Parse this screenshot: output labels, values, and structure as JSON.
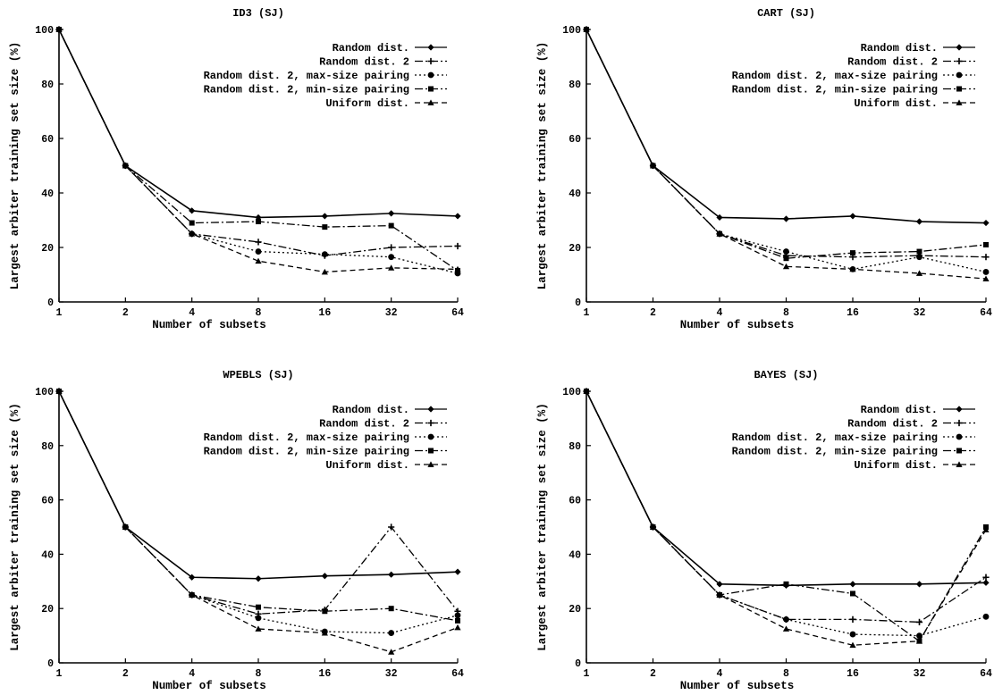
{
  "chart_data": [
    {
      "type": "line",
      "title": "ID3 (SJ)",
      "xlabel": "Number of subsets",
      "ylabel": "Largest arbiter training set size (%)",
      "x": [
        1,
        2,
        4,
        8,
        16,
        32,
        64
      ],
      "x_scale": "log2",
      "ylim": [
        0,
        100
      ],
      "yticks": [
        0,
        20,
        40,
        60,
        80,
        100
      ],
      "legend_position": "top-right",
      "series": [
        {
          "name": "Random dist.",
          "marker": "diamond",
          "dash": "solid",
          "values": [
            100,
            50,
            33.5,
            31,
            31.5,
            32.5,
            31.5
          ]
        },
        {
          "name": "Random dist. 2",
          "marker": "plus",
          "dash": "dash-dot",
          "values": [
            100,
            50,
            25,
            22,
            17,
            20,
            20.5
          ]
        },
        {
          "name": "Random dist. 2, max-size pairing",
          "marker": "circle",
          "dash": "dotted",
          "values": [
            100,
            50,
            25,
            18.5,
            17.5,
            16.5,
            10.5
          ]
        },
        {
          "name": "Random dist. 2, min-size pairing",
          "marker": "square",
          "dash": "dash-dot",
          "values": [
            100,
            50,
            29,
            29.5,
            27.5,
            28,
            11.5
          ]
        },
        {
          "name": "Uniform dist.",
          "marker": "triangle",
          "dash": "dashed",
          "values": [
            100,
            50,
            25,
            15,
            11,
            12.5,
            12
          ]
        }
      ]
    },
    {
      "type": "line",
      "title": "CART (SJ)",
      "xlabel": "Number of subsets",
      "ylabel": "Largest arbiter training set size (%)",
      "x": [
        1,
        2,
        4,
        8,
        16,
        32,
        64
      ],
      "x_scale": "log2",
      "ylim": [
        0,
        100
      ],
      "yticks": [
        0,
        20,
        40,
        60,
        80,
        100
      ],
      "legend_position": "top-right",
      "series": [
        {
          "name": "Random dist.",
          "marker": "diamond",
          "dash": "solid",
          "values": [
            100,
            50,
            31,
            30.5,
            31.5,
            29.5,
            29
          ]
        },
        {
          "name": "Random dist. 2",
          "marker": "plus",
          "dash": "dash-dot",
          "values": [
            100,
            50,
            25,
            17,
            16.5,
            17,
            16.5
          ]
        },
        {
          "name": "Random dist. 2, max-size pairing",
          "marker": "circle",
          "dash": "dotted",
          "values": [
            100,
            50,
            25,
            18.5,
            12,
            16.5,
            11
          ]
        },
        {
          "name": "Random dist. 2, min-size pairing",
          "marker": "square",
          "dash": "dash-dot",
          "values": [
            100,
            50,
            25,
            16,
            18,
            18.5,
            21
          ]
        },
        {
          "name": "Uniform dist.",
          "marker": "triangle",
          "dash": "dashed",
          "values": [
            100,
            50,
            25,
            13,
            12,
            10.5,
            8.5
          ]
        }
      ]
    },
    {
      "type": "line",
      "title": "WPEBLS (SJ)",
      "xlabel": "Number of subsets",
      "ylabel": "Largest arbiter training set size (%)",
      "x": [
        1,
        2,
        4,
        8,
        16,
        32,
        64
      ],
      "x_scale": "log2",
      "ylim": [
        0,
        100
      ],
      "yticks": [
        0,
        20,
        40,
        60,
        80,
        100
      ],
      "legend_position": "top-right",
      "series": [
        {
          "name": "Random dist.",
          "marker": "diamond",
          "dash": "solid",
          "values": [
            100,
            50,
            31.5,
            31,
            32,
            32.5,
            33.5
          ]
        },
        {
          "name": "Random dist. 2",
          "marker": "plus",
          "dash": "dash-dot",
          "values": [
            100,
            50,
            25,
            18,
            19.5,
            50,
            19
          ]
        },
        {
          "name": "Random dist. 2, max-size pairing",
          "marker": "circle",
          "dash": "dotted",
          "values": [
            100,
            50,
            25,
            16.5,
            11.5,
            11,
            17.5
          ]
        },
        {
          "name": "Random dist. 2, min-size pairing",
          "marker": "square",
          "dash": "dash-dot",
          "values": [
            100,
            50,
            25,
            20.5,
            19,
            20,
            15.5
          ]
        },
        {
          "name": "Uniform dist.",
          "marker": "triangle",
          "dash": "dashed",
          "values": [
            100,
            50,
            25,
            12.5,
            11,
            4,
            13
          ]
        }
      ]
    },
    {
      "type": "line",
      "title": "BAYES (SJ)",
      "xlabel": "Number of subsets",
      "ylabel": "Largest arbiter training set size (%)",
      "x": [
        1,
        2,
        4,
        8,
        16,
        32,
        64
      ],
      "x_scale": "log2",
      "ylim": [
        0,
        100
      ],
      "yticks": [
        0,
        20,
        40,
        60,
        80,
        100
      ],
      "legend_position": "top-right",
      "series": [
        {
          "name": "Random dist.",
          "marker": "diamond",
          "dash": "solid",
          "values": [
            100,
            50,
            29,
            28.5,
            29,
            29,
            29.5
          ]
        },
        {
          "name": "Random dist. 2",
          "marker": "plus",
          "dash": "dash-dot",
          "values": [
            100,
            50,
            25,
            16,
            16,
            15,
            31.5
          ]
        },
        {
          "name": "Random dist. 2, max-size pairing",
          "marker": "circle",
          "dash": "dotted",
          "values": [
            100,
            50,
            25,
            16,
            10.5,
            10,
            17
          ]
        },
        {
          "name": "Random dist. 2, min-size pairing",
          "marker": "square",
          "dash": "dash-dot",
          "values": [
            100,
            50,
            25,
            29,
            25.5,
            8,
            50
          ]
        },
        {
          "name": "Uniform dist.",
          "marker": "triangle",
          "dash": "dashed",
          "values": [
            100,
            50,
            25,
            12.5,
            6.5,
            8,
            49
          ]
        }
      ]
    }
  ]
}
